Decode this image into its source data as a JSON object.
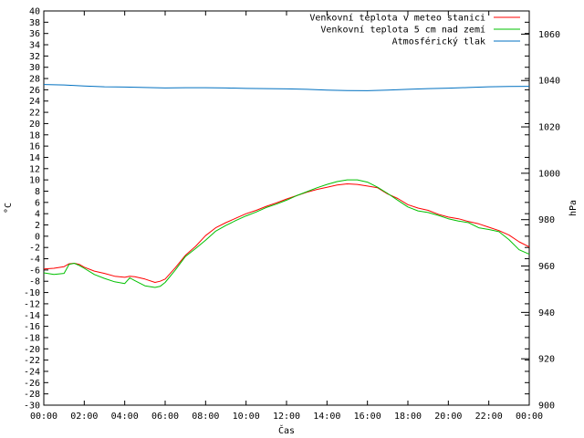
{
  "chart_data": {
    "type": "line",
    "xlabel": "Čas",
    "ylabel": "°C",
    "y2label": "hPa",
    "x_range_hours": [
      0,
      24
    ],
    "xticks": [
      "00:00",
      "02:00",
      "04:00",
      "06:00",
      "08:00",
      "10:00",
      "12:00",
      "14:00",
      "16:00",
      "18:00",
      "20:00",
      "22:00",
      "00:00"
    ],
    "ylim": [
      -30,
      40
    ],
    "yticks": [
      -30,
      -28,
      -26,
      -24,
      -22,
      -20,
      -18,
      -16,
      -14,
      -12,
      -10,
      -8,
      -6,
      -4,
      -2,
      0,
      2,
      4,
      6,
      8,
      10,
      12,
      14,
      16,
      18,
      20,
      22,
      24,
      26,
      28,
      30,
      32,
      34,
      36,
      38,
      40
    ],
    "y2lim": [
      900,
      1070
    ],
    "y2ticks": [
      900,
      920,
      940,
      960,
      980,
      1000,
      1020,
      1040,
      1060
    ],
    "grid": false,
    "legend_position": "top-right",
    "series": [
      {
        "name": "Venkovní teplota v meteo stanici",
        "color": "#ff0000",
        "axis": "left",
        "x": [
          0,
          0.5,
          1,
          1.25,
          1.5,
          1.75,
          2,
          2.5,
          3,
          3.5,
          4,
          4.25,
          4.5,
          5,
          5.5,
          5.75,
          6,
          6.5,
          7,
          7.5,
          8,
          8.5,
          9,
          9.5,
          10,
          10.5,
          11,
          11.5,
          12,
          12.5,
          13,
          13.5,
          14,
          14.5,
          15,
          15.5,
          16,
          16.5,
          17,
          17.5,
          18,
          18.5,
          19,
          19.5,
          20,
          20.5,
          21,
          21.5,
          22,
          22.5,
          23,
          23.5,
          24
        ],
        "values": [
          -5.8,
          -5.7,
          -5.4,
          -4.9,
          -4.8,
          -5.0,
          -5.5,
          -6.2,
          -6.6,
          -7.1,
          -7.3,
          -7.1,
          -7.2,
          -7.6,
          -8.2,
          -8.0,
          -7.6,
          -5.6,
          -3.4,
          -1.8,
          0.1,
          1.5,
          2.4,
          3.2,
          4.0,
          4.6,
          5.3,
          5.9,
          6.6,
          7.2,
          7.8,
          8.3,
          8.7,
          9.1,
          9.3,
          9.2,
          8.9,
          8.6,
          7.5,
          6.7,
          5.6,
          5.0,
          4.6,
          3.9,
          3.4,
          3.1,
          2.6,
          2.2,
          1.6,
          1.0,
          0.2,
          -1.0,
          -1.9
        ]
      },
      {
        "name": "Venkovní teplota 5 cm nad zemí",
        "color": "#00c000",
        "axis": "left",
        "x": [
          0,
          0.5,
          1,
          1.25,
          1.5,
          1.75,
          2,
          2.5,
          3,
          3.5,
          4,
          4.25,
          4.5,
          5,
          5.5,
          5.75,
          6,
          6.5,
          7,
          7.5,
          8,
          8.5,
          9,
          9.5,
          10,
          10.5,
          11,
          11.5,
          12,
          12.5,
          13,
          13.5,
          14,
          14.5,
          15,
          15.5,
          16,
          16.5,
          17,
          17.5,
          18,
          18.5,
          19,
          19.5,
          20,
          20.5,
          21,
          21.5,
          22,
          22.5,
          23,
          23.5,
          24
        ],
        "values": [
          -6.5,
          -6.8,
          -6.6,
          -5.0,
          -4.8,
          -5.2,
          -5.7,
          -6.8,
          -7.5,
          -8.1,
          -8.4,
          -7.4,
          -7.9,
          -8.8,
          -9.1,
          -8.9,
          -8.2,
          -6.0,
          -3.6,
          -2.2,
          -0.7,
          0.9,
          1.9,
          2.8,
          3.6,
          4.3,
          5.1,
          5.7,
          6.4,
          7.2,
          7.9,
          8.6,
          9.2,
          9.7,
          10.0,
          10.0,
          9.6,
          8.7,
          7.6,
          6.4,
          5.2,
          4.5,
          4.2,
          3.7,
          3.1,
          2.7,
          2.4,
          1.5,
          1.2,
          0.8,
          -0.6,
          -2.4,
          -3.2
        ]
      },
      {
        "name": "Atmosférický tlak",
        "color": "#0070c0",
        "axis": "right",
        "x": [
          0,
          1,
          2,
          3,
          4,
          5,
          6,
          7,
          8,
          9,
          10,
          11,
          12,
          13,
          14,
          15,
          16,
          17,
          18,
          19,
          20,
          21,
          22,
          23,
          24
        ],
        "values": [
          1038.3,
          1038.1,
          1037.6,
          1037.3,
          1037.2,
          1037.0,
          1036.8,
          1036.9,
          1036.9,
          1036.8,
          1036.6,
          1036.5,
          1036.4,
          1036.2,
          1035.9,
          1035.7,
          1035.6,
          1035.9,
          1036.2,
          1036.5,
          1036.7,
          1037.0,
          1037.3,
          1037.4,
          1037.5
        ]
      }
    ]
  }
}
